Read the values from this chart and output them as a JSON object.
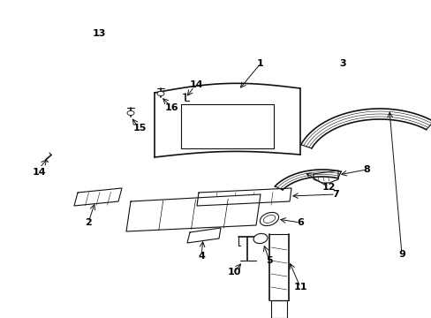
{
  "bg_color": "#ffffff",
  "line_color": "#111111",
  "text_color": "#000000",
  "fig_width": 4.89,
  "fig_height": 3.6,
  "dpi": 100
}
